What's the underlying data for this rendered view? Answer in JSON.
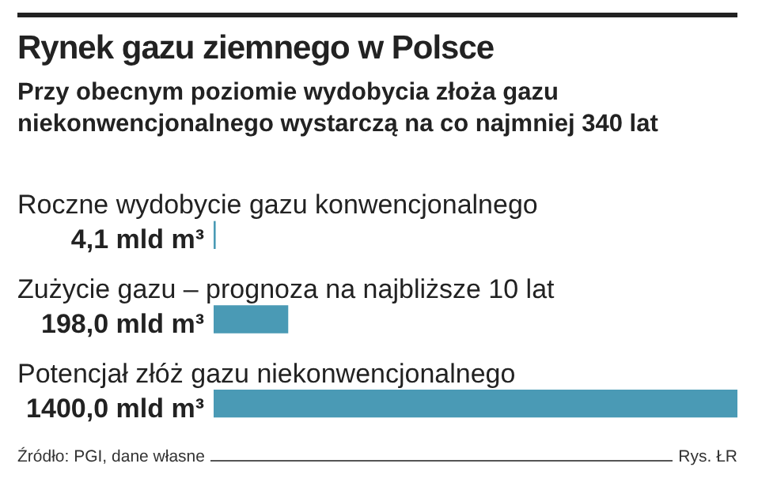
{
  "chart_data": {
    "type": "bar",
    "orientation": "horizontal",
    "title": "Rynek gazu ziemnego w Polsce",
    "subtitle": "Przy obecnym poziomie wydobycia złoża gazu niekonwencjonalnego wystarczą na co najmniej 340 lat",
    "categories": [
      "Roczne wydobycie gazu konwencjonalnego",
      "Zużycie gazu – prognoza na najbliższe 10 lat",
      "Potencjał złóż gazu niekonwencjonalnego"
    ],
    "values": [
      4.1,
      198.0,
      1400.0
    ],
    "value_labels": [
      "4,1 mld m³",
      "198,0 mld m³",
      "1400,0 mld m³"
    ],
    "color": "#4a9ab5",
    "legend": false,
    "annotations": [
      "Źródło: PGI, dane własne",
      "Rys. ŁR"
    ]
  }
}
